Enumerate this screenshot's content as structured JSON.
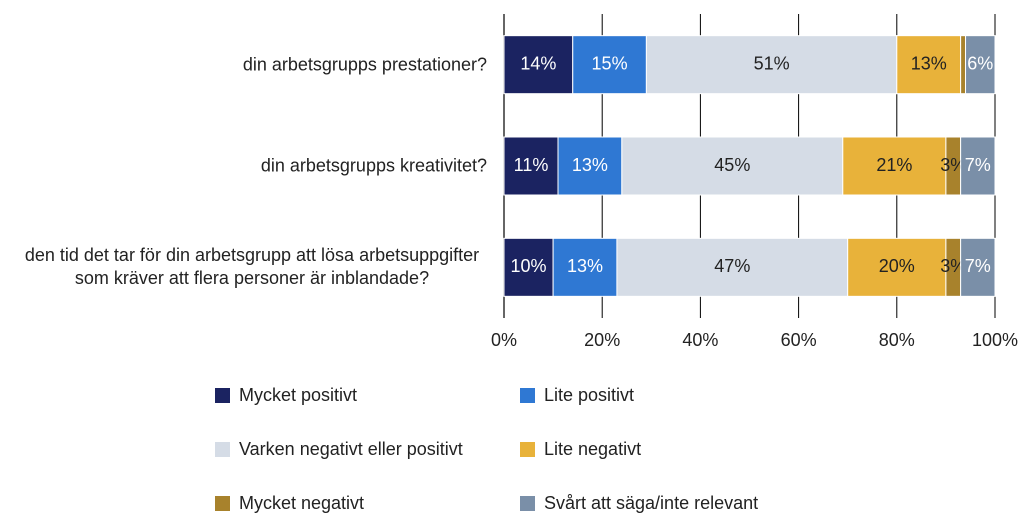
{
  "chart_data": {
    "type": "stacked_barh",
    "categories": [
      "din arbetsgrupps prestationer?",
      "din arbetsgrupps kreativitet?",
      "den tid det tar för din arbetsgrupp att lösa arbetsuppgifter som kräver att flera personer är inblandade?"
    ],
    "series": [
      {
        "name": "Mycket positivt",
        "color": "#1b2361",
        "values": [
          14,
          11,
          10
        ],
        "value_labels": [
          "14%",
          "11%",
          "10%"
        ]
      },
      {
        "name": "Lite positivt",
        "color": "#2f78d3",
        "values": [
          15,
          13,
          13
        ],
        "value_labels": [
          "15%",
          "13%",
          "13%"
        ]
      },
      {
        "name": "Varken negativt eller positivt",
        "color": "#d5dce6",
        "values": [
          51,
          45,
          47
        ],
        "value_labels": [
          "51%",
          "45%",
          "47%"
        ]
      },
      {
        "name": "Lite negativt",
        "color": "#e8b23a",
        "values": [
          13,
          21,
          20
        ],
        "value_labels": [
          "13%",
          "21%",
          "20%"
        ]
      },
      {
        "name": "Mycket negativt",
        "color": "#a8822c",
        "values": [
          1,
          3,
          3
        ],
        "value_labels": [
          null,
          "3%",
          "3%"
        ]
      },
      {
        "name": "Svårt att säga/inte relevant",
        "color": "#7a8fa8",
        "values": [
          6,
          7,
          7
        ],
        "value_labels": [
          "6%",
          "7%",
          "7%"
        ]
      }
    ],
    "xlim": [
      0,
      100
    ],
    "xticks": [
      {
        "value": 0,
        "label": "0%"
      },
      {
        "value": 20,
        "label": "20%"
      },
      {
        "value": 40,
        "label": "40%"
      },
      {
        "value": 60,
        "label": "60%"
      },
      {
        "value": 80,
        "label": "80%"
      },
      {
        "value": 100,
        "label": "100%"
      }
    ],
    "grid": true
  }
}
